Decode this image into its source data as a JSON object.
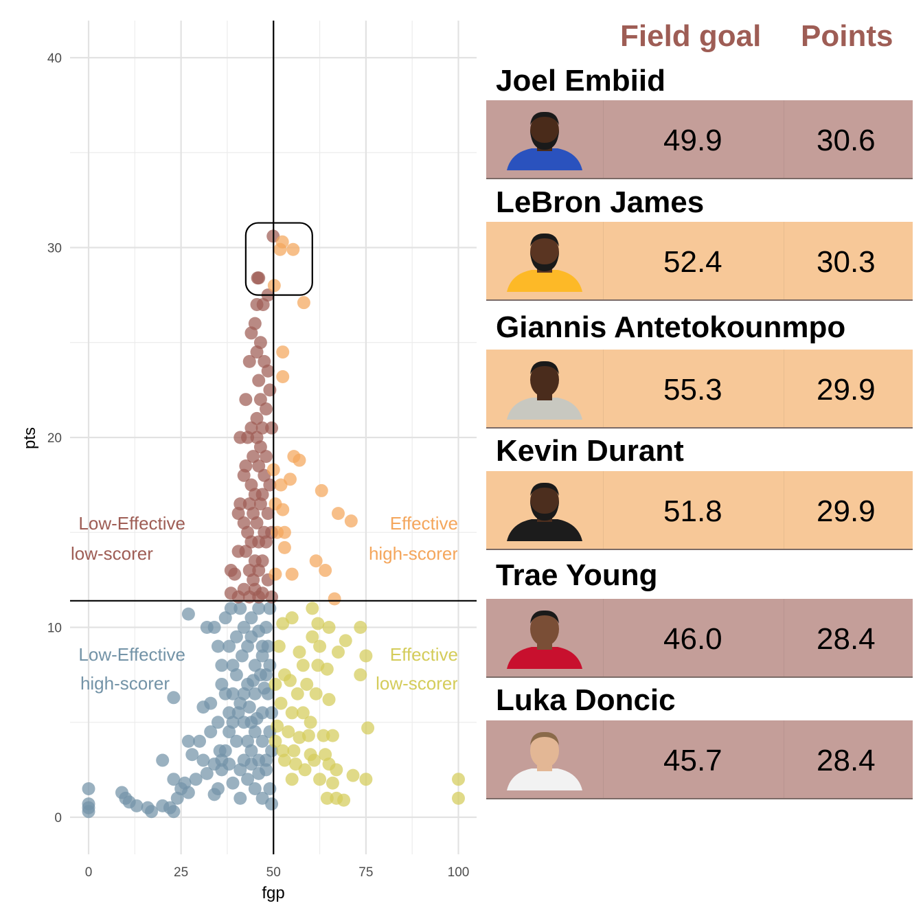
{
  "chart_data": {
    "type": "scatter",
    "xlabel": "fgp",
    "ylabel": "pts",
    "xlim": [
      -5,
      105
    ],
    "ylim": [
      -2,
      42
    ],
    "xticks": [
      0,
      25,
      50,
      75,
      100
    ],
    "yticks": [
      0,
      10,
      20,
      30,
      40
    ],
    "grid": true,
    "reference_lines": {
      "x": 50,
      "y": 11.4
    },
    "colors": {
      "low_effective_high_scorer": "#9e5d55",
      "effective_high_scorer": "#f4a65c",
      "low_effective_low_scorer": "#7393a7",
      "effective_low_scorer": "#d4cc5a"
    },
    "quadrant_labels": {
      "top_left": [
        "Low-Effective",
        "low-scorer"
      ],
      "top_right": [
        "Effective",
        "high-scorer"
      ],
      "bottom_left": [
        "Low-Effective",
        "high-scorer"
      ],
      "bottom_right": [
        "Effective",
        "low-scorer"
      ]
    },
    "highlight_box": {
      "x": [
        42.5,
        60.5
      ],
      "y": [
        27.5,
        31.3
      ]
    },
    "series": [
      {
        "group": "low_effective_high_scorer",
        "points": [
          [
            49.9,
            30.6
          ],
          [
            45.7,
            28.4
          ],
          [
            46.0,
            28.4
          ],
          [
            48.5,
            27.5
          ],
          [
            47.2,
            27.0
          ],
          [
            45.5,
            27.0
          ],
          [
            45.0,
            26.0
          ],
          [
            44.0,
            25.5
          ],
          [
            46.5,
            25.0
          ],
          [
            45.5,
            24.5
          ],
          [
            43.5,
            24.0
          ],
          [
            47.5,
            24.0
          ],
          [
            48.5,
            23.5
          ],
          [
            46.0,
            23.0
          ],
          [
            49.0,
            22.5
          ],
          [
            46.5,
            22.0
          ],
          [
            42.5,
            22.0
          ],
          [
            48.0,
            21.5
          ],
          [
            45.5,
            21.0
          ],
          [
            47.0,
            20.5
          ],
          [
            44.0,
            20.5
          ],
          [
            49.5,
            20.5
          ],
          [
            43.0,
            20.0
          ],
          [
            41.0,
            20.0
          ],
          [
            45.5,
            20.0
          ],
          [
            46.5,
            19.5
          ],
          [
            44.5,
            19.0
          ],
          [
            48.0,
            19.0
          ],
          [
            42.5,
            18.5
          ],
          [
            46.0,
            18.5
          ],
          [
            47.5,
            18.0
          ],
          [
            42.0,
            18.0
          ],
          [
            44.0,
            17.5
          ],
          [
            49.0,
            17.5
          ],
          [
            45.0,
            17.0
          ],
          [
            47.0,
            17.0
          ],
          [
            41.0,
            16.5
          ],
          [
            43.5,
            16.5
          ],
          [
            46.5,
            16.5
          ],
          [
            48.5,
            16.0
          ],
          [
            40.5,
            16.0
          ],
          [
            44.5,
            16.0
          ],
          [
            42.0,
            15.5
          ],
          [
            45.5,
            15.5
          ],
          [
            47.5,
            15.0
          ],
          [
            43.0,
            15.0
          ],
          [
            49.5,
            15.0
          ],
          [
            44.0,
            14.5
          ],
          [
            46.0,
            14.5
          ],
          [
            48.0,
            14.5
          ],
          [
            40.5,
            14.0
          ],
          [
            42.5,
            14.0
          ],
          [
            45.0,
            13.5
          ],
          [
            47.0,
            13.5
          ],
          [
            43.5,
            13.0
          ],
          [
            46.0,
            13.0
          ],
          [
            38.5,
            13.0
          ],
          [
            39.5,
            12.8
          ],
          [
            44.5,
            12.5
          ],
          [
            48.5,
            12.5
          ],
          [
            42.0,
            12.0
          ],
          [
            45.0,
            12.0
          ],
          [
            47.0,
            11.8
          ],
          [
            38.5,
            11.8
          ],
          [
            40.5,
            11.6
          ],
          [
            43.5,
            11.6
          ],
          [
            46.0,
            11.6
          ],
          [
            49.5,
            11.6
          ]
        ]
      },
      {
        "group": "effective_high_scorer",
        "points": [
          [
            52.4,
            30.3
          ],
          [
            55.3,
            29.9
          ],
          [
            51.8,
            29.9
          ],
          [
            50.2,
            28.0
          ],
          [
            58.2,
            27.1
          ],
          [
            52.5,
            24.5
          ],
          [
            52.5,
            23.2
          ],
          [
            55.5,
            19.0
          ],
          [
            57.0,
            18.8
          ],
          [
            50.0,
            18.3
          ],
          [
            52.0,
            17.5
          ],
          [
            54.5,
            17.8
          ],
          [
            63.0,
            17.2
          ],
          [
            67.5,
            16.0
          ],
          [
            71.0,
            15.6
          ],
          [
            50.5,
            16.5
          ],
          [
            52.5,
            16.2
          ],
          [
            51.0,
            15.0
          ],
          [
            53.0,
            15.0
          ],
          [
            53.0,
            14.2
          ],
          [
            61.5,
            13.5
          ],
          [
            64.0,
            13.0
          ],
          [
            50.5,
            12.8
          ],
          [
            55.0,
            12.8
          ],
          [
            66.5,
            11.5
          ]
        ]
      },
      {
        "group": "effective_low_scorer",
        "points": [
          [
            100,
            2.0
          ],
          [
            100,
            1.0
          ],
          [
            60.5,
            11.0
          ],
          [
            62.0,
            10.2
          ],
          [
            65.0,
            10.0
          ],
          [
            73.5,
            10.0
          ],
          [
            52.5,
            10.2
          ],
          [
            55.0,
            10.5
          ],
          [
            60.5,
            9.5
          ],
          [
            62.5,
            9.0
          ],
          [
            69.5,
            9.3
          ],
          [
            51.5,
            9.0
          ],
          [
            57.0,
            8.7
          ],
          [
            75.0,
            8.5
          ],
          [
            67.5,
            8.7
          ],
          [
            58.0,
            8.0
          ],
          [
            62.0,
            8.0
          ],
          [
            64.5,
            7.8
          ],
          [
            53.0,
            7.5
          ],
          [
            54.5,
            7.2
          ],
          [
            59.0,
            7.0
          ],
          [
            73.5,
            7.5
          ],
          [
            50.5,
            7.0
          ],
          [
            56.5,
            6.5
          ],
          [
            61.5,
            6.5
          ],
          [
            65.0,
            6.2
          ],
          [
            52.0,
            6.0
          ],
          [
            55.0,
            5.5
          ],
          [
            58.0,
            5.5
          ],
          [
            60.0,
            5.0
          ],
          [
            51.0,
            4.8
          ],
          [
            54.0,
            4.5
          ],
          [
            75.5,
            4.7
          ],
          [
            57.0,
            4.2
          ],
          [
            59.5,
            4.3
          ],
          [
            63.5,
            4.3
          ],
          [
            66.0,
            4.3
          ],
          [
            50.5,
            4.0
          ],
          [
            52.5,
            3.5
          ],
          [
            55.5,
            3.5
          ],
          [
            60.0,
            3.3
          ],
          [
            64.0,
            3.3
          ],
          [
            53.0,
            3.0
          ],
          [
            56.0,
            2.8
          ],
          [
            58.5,
            2.5
          ],
          [
            61.0,
            3.0
          ],
          [
            65.0,
            2.8
          ],
          [
            67.0,
            2.5
          ],
          [
            55.0,
            2.0
          ],
          [
            62.5,
            2.0
          ],
          [
            66.0,
            1.8
          ],
          [
            71.5,
            2.2
          ],
          [
            75.0,
            2.0
          ],
          [
            64.5,
            1.0
          ],
          [
            67.0,
            1.0
          ],
          [
            69.0,
            0.9
          ]
        ]
      },
      {
        "group": "low_effective_low_scorer",
        "points": [
          [
            0,
            1.5
          ],
          [
            0,
            0.7
          ],
          [
            0,
            0.5
          ],
          [
            0,
            0.3
          ],
          [
            9,
            1.3
          ],
          [
            10,
            1.0
          ],
          [
            11,
            0.8
          ],
          [
            13,
            0.6
          ],
          [
            16,
            0.5
          ],
          [
            17,
            0.3
          ],
          [
            20,
            0.6
          ],
          [
            22,
            0.5
          ],
          [
            23,
            0.3
          ],
          [
            24,
            1.0
          ],
          [
            25,
            1.5
          ],
          [
            26,
            1.8
          ],
          [
            27,
            1.3
          ],
          [
            23,
            2.0
          ],
          [
            20,
            3.0
          ],
          [
            27,
            4.0
          ],
          [
            28,
            3.3
          ],
          [
            30,
            4.0
          ],
          [
            31,
            3.0
          ],
          [
            29,
            2.0
          ],
          [
            32,
            2.3
          ],
          [
            34,
            1.2
          ],
          [
            33,
            4.5
          ],
          [
            35,
            5.0
          ],
          [
            35.5,
            3.5
          ],
          [
            34,
            2.8
          ],
          [
            36,
            3.0
          ],
          [
            33,
            6.0
          ],
          [
            31,
            5.8
          ],
          [
            23,
            6.3
          ],
          [
            27,
            10.7
          ],
          [
            32,
            10.0
          ],
          [
            34,
            10.0
          ],
          [
            35,
            9.0
          ],
          [
            36,
            8.0
          ],
          [
            36,
            7.0
          ],
          [
            37,
            6.5
          ],
          [
            38,
            5.5
          ],
          [
            39,
            5.0
          ],
          [
            38,
            4.5
          ],
          [
            37,
            3.5
          ],
          [
            36,
            2.5
          ],
          [
            35,
            1.5
          ],
          [
            39,
            1.8
          ],
          [
            41,
            1.0
          ],
          [
            43,
            2.0
          ],
          [
            45,
            1.5
          ],
          [
            47,
            1.0
          ],
          [
            49,
            1.5
          ],
          [
            49.5,
            0.7
          ],
          [
            48,
            2.5
          ],
          [
            46,
            3.0
          ],
          [
            44,
            3.5
          ],
          [
            42,
            3.0
          ],
          [
            40,
            4.0
          ],
          [
            41,
            6.0
          ],
          [
            43,
            7.0
          ],
          [
            45,
            8.0
          ],
          [
            47,
            9.0
          ],
          [
            48,
            10.0
          ],
          [
            49,
            11.0
          ],
          [
            46,
            11.0
          ],
          [
            44,
            10.5
          ],
          [
            42,
            10.0
          ],
          [
            40,
            9.5
          ],
          [
            38,
            9.0
          ],
          [
            37,
            10.5
          ],
          [
            38.5,
            11.0
          ],
          [
            41,
            11.0
          ],
          [
            43,
            9.0
          ],
          [
            45,
            6.5
          ],
          [
            47,
            5.5
          ],
          [
            48.5,
            6.5
          ],
          [
            49,
            4.5
          ],
          [
            49.5,
            3.5
          ],
          [
            48,
            7.5
          ],
          [
            46.5,
            7.5
          ],
          [
            44,
            5.0
          ],
          [
            42,
            5.0
          ],
          [
            40,
            7.5
          ],
          [
            39,
            8.0
          ],
          [
            41.5,
            8.5
          ],
          [
            44,
            9.5
          ],
          [
            46,
            9.8
          ],
          [
            48.5,
            9.0
          ],
          [
            47,
            8.5
          ],
          [
            49,
            8.0
          ],
          [
            43,
            4.0
          ],
          [
            45,
            4.5
          ],
          [
            47,
            4.0
          ],
          [
            46,
            2.3
          ],
          [
            44,
            2.8
          ],
          [
            41,
            2.5
          ],
          [
            38,
            2.8
          ],
          [
            39,
            6.5
          ],
          [
            42,
            6.5
          ],
          [
            44.5,
            7.2
          ],
          [
            47.5,
            6.8
          ],
          [
            49.5,
            5.5
          ],
          [
            45.5,
            5.2
          ],
          [
            43.5,
            5.8
          ],
          [
            40.5,
            5.5
          ],
          [
            48,
            3.0
          ]
        ]
      }
    ]
  },
  "table": {
    "col_field_goal": "Field goal",
    "col_points": "Points",
    "players": [
      {
        "name": "Joel Embiid",
        "fg": "49.9",
        "pts": "30.6",
        "bg": "#c49e99",
        "jersey": "#2a52be",
        "skin": "#4a2b1a",
        "hair": "beard"
      },
      {
        "name": "LeBron James",
        "fg": "52.4",
        "pts": "30.3",
        "bg": "#f7c898",
        "jersey": "#fdb927",
        "skin": "#5a3522",
        "hair": "beard"
      },
      {
        "name": "Giannis Antetokounmpo",
        "fg": "55.3",
        "pts": "29.9",
        "bg": "#f7c898",
        "jersey": "#c8c8c0",
        "skin": "#4a2c1c",
        "hair": "short"
      },
      {
        "name": "Kevin Durant",
        "fg": "51.8",
        "pts": "29.9",
        "bg": "#f7c898",
        "jersey": "#1c1c1c",
        "skin": "#4c2e1e",
        "hair": "beard"
      },
      {
        "name": "Trae Young",
        "fg": "46.0",
        "pts": "28.4",
        "bg": "#c49e99",
        "jersey": "#c8102e",
        "skin": "#7a4e36",
        "hair": "short"
      },
      {
        "name": "Luka Doncic",
        "fg": "45.7",
        "pts": "28.4",
        "bg": "#c49e99",
        "jersey": "#f2f2f2",
        "skin": "#e3b795",
        "hair": "light"
      }
    ]
  }
}
